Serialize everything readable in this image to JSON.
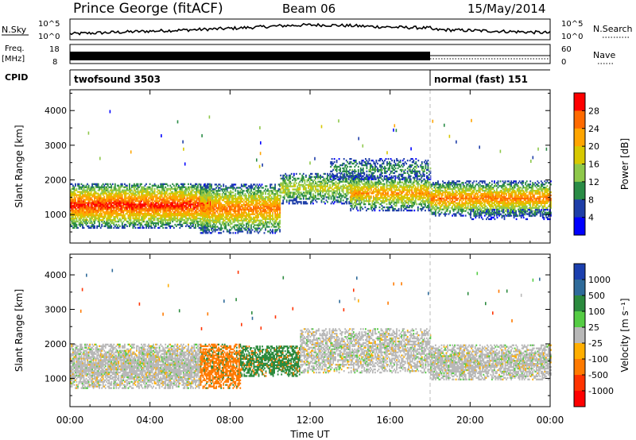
{
  "header": {
    "station": "Prince George (fitACF)",
    "beam": "Beam 06",
    "date": "15/May/2014"
  },
  "summary": {
    "nsky_label": "N.Sky",
    "nsearch_label": "N.Search",
    "freq_label_line1": "Freq.",
    "freq_label_line2": "[MHz]",
    "nave_label": "Nave",
    "cpid_label": "CPID",
    "nsky_ticks": [
      "10^5",
      "10^0"
    ],
    "nsearch_ticks": [
      "10^5",
      "10^0"
    ],
    "freq_ticks": [
      "18",
      "8"
    ],
    "nave_ticks": [
      "60",
      "0"
    ],
    "cpid_segments": [
      {
        "label": "twofsound 3503",
        "start_hour": 0,
        "end_hour": 18
      },
      {
        "label": "normal (fast) 151",
        "start_hour": 18,
        "end_hour": 24
      }
    ]
  },
  "x_axis": {
    "label": "Time UT",
    "ticks": [
      "00:00",
      "04:00",
      "08:00",
      "12:00",
      "16:00",
      "20:00",
      "00:00"
    ],
    "tick_hours": [
      0,
      4,
      8,
      12,
      16,
      20,
      24
    ],
    "range_hours": [
      0,
      24
    ]
  },
  "y_axis": {
    "label": "Slant Range [km]",
    "ticks": [
      "1000",
      "2000",
      "3000",
      "4000"
    ],
    "tick_values": [
      1000,
      2000,
      3000,
      4000
    ],
    "range_km": [
      180,
      4600
    ]
  },
  "power_colorbar": {
    "label": "Power [dB]",
    "tick_labels": [
      "28",
      "24",
      "20",
      "16",
      "12",
      "8",
      "4"
    ],
    "colors": [
      "#ff0000",
      "#ff6a00",
      "#ffa500",
      "#d7c800",
      "#8ec84a",
      "#2a8c46",
      "#1e3ea8",
      "#0000ff"
    ]
  },
  "velocity_colorbar": {
    "label": "Velocity [m s⁻¹]",
    "tick_labels": [
      "1000",
      "500",
      "100",
      "25",
      "-25",
      "-100",
      "-500",
      "-1000"
    ],
    "colors": [
      "#1b3fae",
      "#2f6b9a",
      "#2b8a3e",
      "#55cc44",
      "#b8b8b8",
      "#ffae00",
      "#ff7a00",
      "#ff3300",
      "#ff0000"
    ]
  },
  "chart_data": [
    {
      "type": "heatmap",
      "title": "Power",
      "xlabel": "Time UT",
      "ylabel": "Slant Range [km]",
      "xlim_hours": [
        0,
        24
      ],
      "ylim_km": [
        180,
        4600
      ],
      "colorbar": "Power [dB]",
      "colorbar_range_db": [
        0,
        30
      ],
      "layers": [
        {
          "kind": "band",
          "start_hour": 0.0,
          "end_hour": 7.0,
          "center_km": 1250,
          "halfwidth_km": 650,
          "peak_db": 28,
          "edge_db": 6,
          "fill": 0.92
        },
        {
          "kind": "band",
          "start_hour": 6.5,
          "end_hour": 10.5,
          "center_km": 1150,
          "halfwidth_km": 700,
          "peak_db": 24,
          "edge_db": 5,
          "fill": 0.82
        },
        {
          "kind": "band",
          "start_hour": 10.5,
          "end_hour": 14.5,
          "center_km": 1750,
          "halfwidth_km": 450,
          "peak_db": 16,
          "edge_db": 5,
          "fill": 0.65
        },
        {
          "kind": "band",
          "start_hour": 14.0,
          "end_hour": 18.0,
          "center_km": 1600,
          "halfwidth_km": 500,
          "peak_db": 22,
          "edge_db": 5,
          "fill": 0.78
        },
        {
          "kind": "band",
          "start_hour": 18.0,
          "end_hour": 24.0,
          "center_km": 1450,
          "halfwidth_km": 500,
          "peak_db": 24,
          "edge_db": 5,
          "fill": 0.82
        },
        {
          "kind": "band",
          "start_hour": 13.0,
          "end_hour": 18.0,
          "center_km": 2300,
          "halfwidth_km": 300,
          "peak_db": 10,
          "edge_db": 4,
          "fill": 0.5
        },
        {
          "kind": "band",
          "start_hour": 20.0,
          "end_hour": 24.0,
          "center_km": 1000,
          "halfwidth_km": 150,
          "peak_db": 8,
          "edge_db": 3,
          "fill": 0.35
        }
      ]
    },
    {
      "type": "heatmap",
      "title": "Velocity",
      "xlabel": "Time UT",
      "ylabel": "Slant Range [km]",
      "xlim_hours": [
        0,
        24
      ],
      "ylim_km": [
        180,
        4600
      ],
      "colorbar": "Velocity [m s⁻¹]",
      "colorbar_range_ms": [
        -1000,
        1000
      ],
      "layers": [
        {
          "kind": "band",
          "start_hour": 0.0,
          "end_hour": 6.5,
          "center_km": 1350,
          "halfwidth_km": 650,
          "velocity_ms": 0,
          "fill": 0.88
        },
        {
          "kind": "band",
          "start_hour": 6.5,
          "end_hour": 8.5,
          "center_km": 1350,
          "halfwidth_km": 650,
          "velocity_ms": -300,
          "fill": 0.8
        },
        {
          "kind": "band",
          "start_hour": 8.5,
          "end_hour": 11.5,
          "center_km": 1500,
          "halfwidth_km": 450,
          "velocity_ms": 300,
          "fill": 0.75
        },
        {
          "kind": "band",
          "start_hour": 11.5,
          "end_hour": 18.0,
          "center_km": 1800,
          "halfwidth_km": 650,
          "velocity_ms": 0,
          "fill": 0.7
        },
        {
          "kind": "band",
          "start_hour": 18.0,
          "end_hour": 24.0,
          "center_km": 1450,
          "halfwidth_km": 500,
          "velocity_ms": 0,
          "fill": 0.82
        }
      ]
    }
  ]
}
